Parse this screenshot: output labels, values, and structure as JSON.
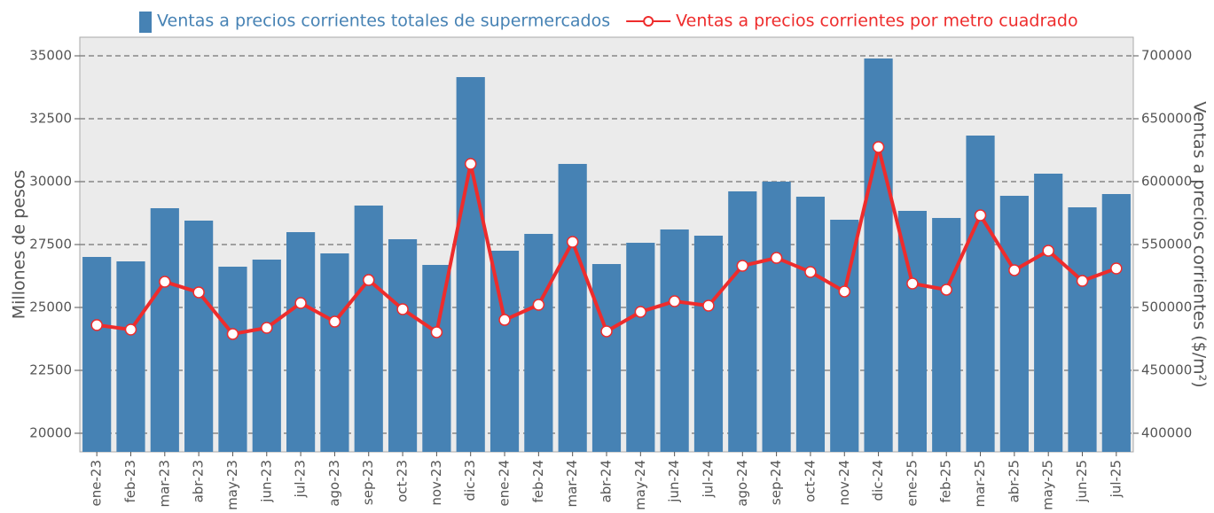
{
  "chart_data": {
    "type": "bar_line",
    "y_label": "Millones de pesos",
    "y2_label": "Ventas a precios corrientes ($/m²)",
    "categories": [
      "ene-23",
      "feb-23",
      "mar-23",
      "abr-23",
      "may-23",
      "jun-23",
      "jul-23",
      "ago-23",
      "sep-23",
      "oct-23",
      "nov-23",
      "dic-23",
      "ene-24",
      "feb-24",
      "mar-24",
      "abr-24",
      "may-24",
      "jun-24",
      "jul-24",
      "ago-24",
      "sep-24",
      "oct-24",
      "nov-24",
      "dic-24",
      "ene-25",
      "feb-25",
      "mar-25",
      "abr-25",
      "may-25",
      "jun-25",
      "jul-25"
    ],
    "series": [
      {
        "name": "Ventas a precios corrientes totales de supermercados",
        "type": "bar",
        "color": "#4682b4",
        "axis": "y",
        "values": [
          27007,
          26831,
          28944,
          28451,
          26620,
          26901,
          27993,
          27148,
          29049,
          27711,
          26690,
          34155,
          27254,
          27923,
          30704,
          26725,
          27570,
          28099,
          27852,
          29613,
          30000,
          29401,
          28486,
          34894,
          28838,
          28556,
          31831,
          29437,
          30317,
          28979,
          29507
        ]
      },
      {
        "name": "Ventas a precios corrientes por metro cuadrado",
        "type": "line",
        "color": "#ee2c2c",
        "axis": "y2",
        "values": [
          486000,
          482400,
          520400,
          512000,
          478900,
          483800,
          503500,
          488700,
          521800,
          498600,
          480300,
          614100,
          490100,
          502100,
          552100,
          481000,
          496500,
          504900,
          501400,
          533100,
          539400,
          528200,
          512700,
          627500,
          519000,
          514100,
          573200,
          529600,
          545100,
          521100,
          531000
        ]
      }
    ],
    "ylim": [
      19260,
      35740
    ],
    "yticks": [
      20000,
      22500,
      25000,
      27500,
      30000,
      32500,
      35000
    ],
    "y2lim": [
      385200,
      714800
    ],
    "y2ticks": [
      400000,
      450000,
      500000,
      550000,
      600000,
      650000,
      700000
    ],
    "grid": true
  }
}
